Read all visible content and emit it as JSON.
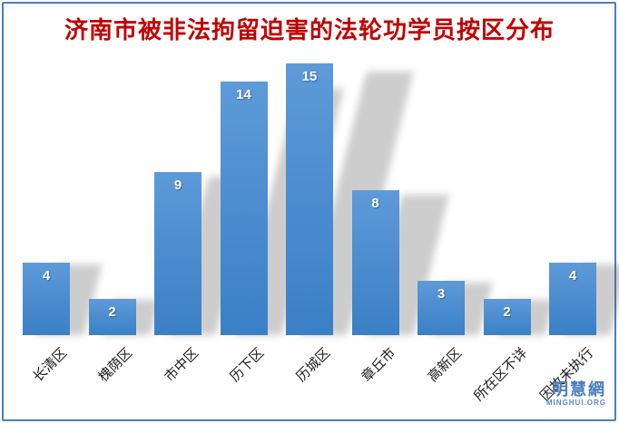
{
  "title": {
    "text": "济南市被非法拘留迫害的法轮功学员按区分布",
    "color": "#c00000"
  },
  "chart_data": {
    "type": "bar",
    "title": "济南市被非法拘留迫害的法轮功学员按区分布",
    "categories": [
      "长清区",
      "槐荫区",
      "市中区",
      "历下区",
      "历城区",
      "章丘市",
      "高新区",
      "所在区不详",
      "因故未执行"
    ],
    "values": [
      4,
      2,
      9,
      14,
      15,
      8,
      3,
      2,
      4
    ],
    "xlabel": "",
    "ylabel": "",
    "ylim": [
      0,
      15
    ],
    "grid": false,
    "legend": false,
    "y_axis_visible": false,
    "value_labels_position": "inside-top",
    "value_label_color": "#ffffff",
    "bar_color_top": "#5e9ad8",
    "bar_color_bottom": "#3a80c6",
    "bar_shadow": "perspective-right",
    "x_label_rotation_deg": -45
  },
  "frame": {
    "border_color": "#4b7ec0"
  },
  "watermark": {
    "cjk": "明慧網",
    "latin": "MINGHUI.ORG",
    "color": "#4a7dc0"
  }
}
